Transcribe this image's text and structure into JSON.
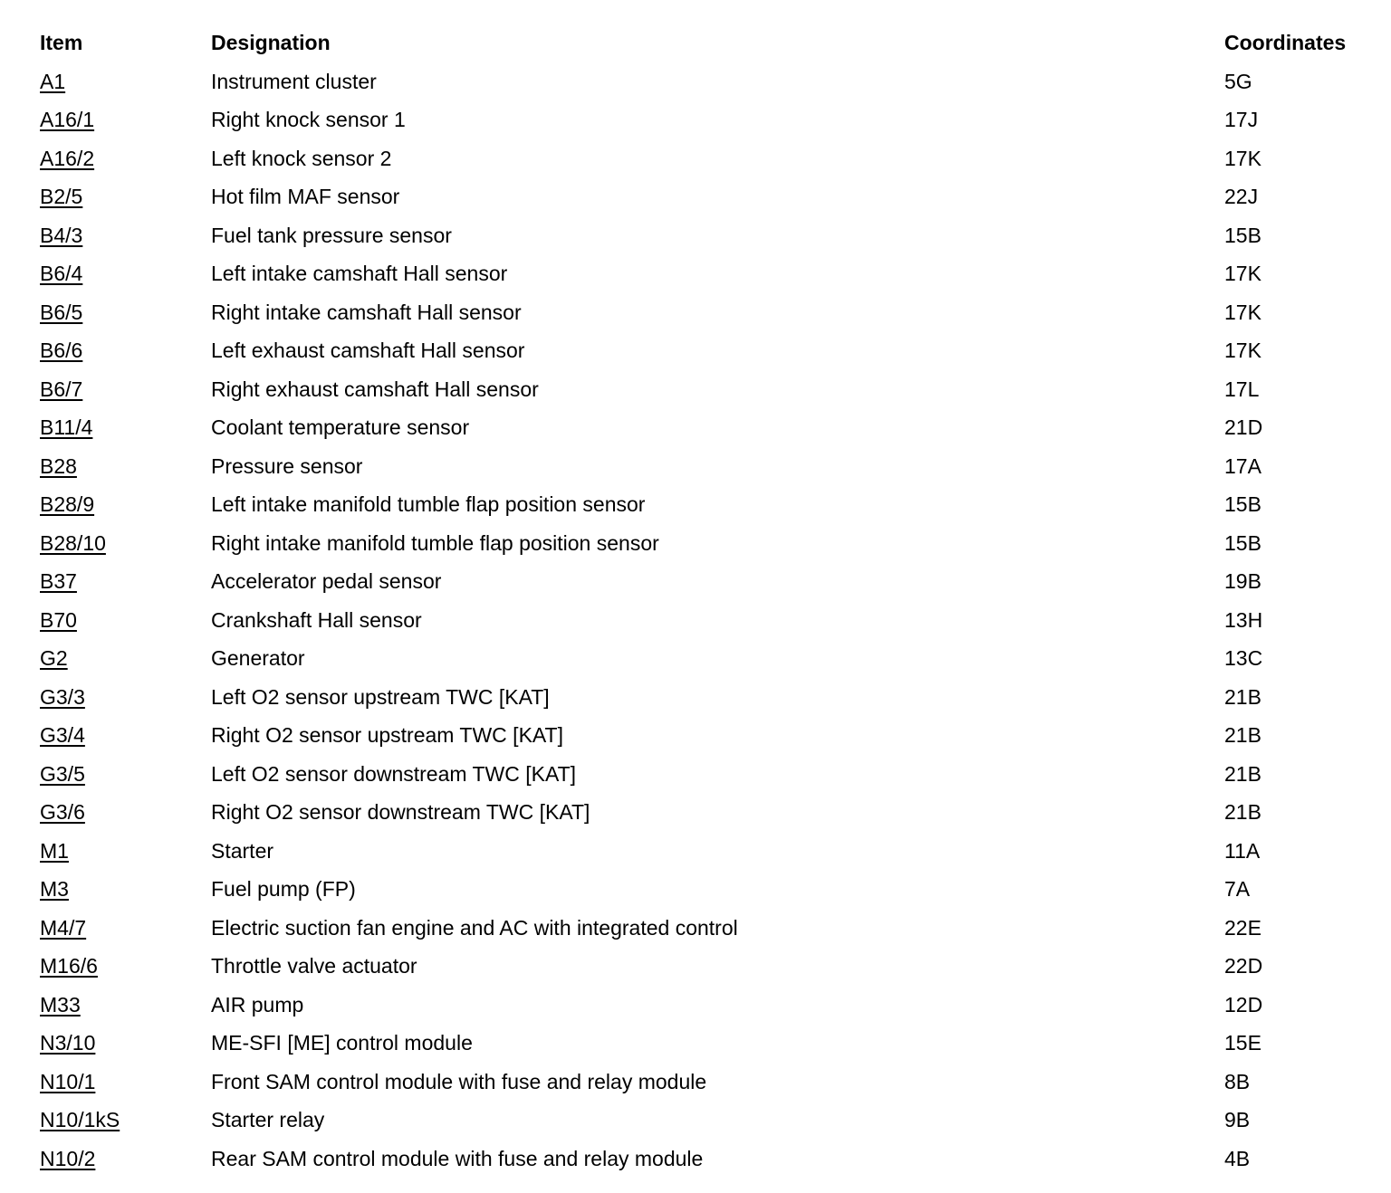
{
  "page": {
    "background_color": "#ffffff",
    "text_color": "#000000"
  },
  "table": {
    "headers": {
      "item": "Item",
      "designation": "Designation",
      "coordinates": "Coordinates"
    },
    "rows": [
      {
        "item": "A1",
        "designation": "Instrument cluster",
        "coordinates": "5G"
      },
      {
        "item": "A16/1",
        "designation": "Right knock sensor 1",
        "coordinates": "17J"
      },
      {
        "item": "A16/2",
        "designation": "Left knock sensor 2",
        "coordinates": "17K"
      },
      {
        "item": "B2/5",
        "designation": "Hot film MAF sensor",
        "coordinates": "22J"
      },
      {
        "item": "B4/3",
        "designation": "Fuel tank pressure sensor",
        "coordinates": "15B"
      },
      {
        "item": "B6/4",
        "designation": "Left intake camshaft Hall sensor",
        "coordinates": "17K"
      },
      {
        "item": "B6/5",
        "designation": "Right intake camshaft Hall sensor",
        "coordinates": "17K"
      },
      {
        "item": "B6/6",
        "designation": "Left exhaust camshaft Hall sensor",
        "coordinates": "17K"
      },
      {
        "item": "B6/7",
        "designation": "Right exhaust camshaft Hall sensor",
        "coordinates": "17L"
      },
      {
        "item": "B11/4",
        "designation": "Coolant temperature sensor",
        "coordinates": "21D"
      },
      {
        "item": "B28",
        "designation": "Pressure sensor",
        "coordinates": "17A"
      },
      {
        "item": "B28/9",
        "designation": "Left intake manifold tumble flap position sensor",
        "coordinates": "15B"
      },
      {
        "item": "B28/10",
        "designation": "Right intake manifold tumble flap position sensor",
        "coordinates": "15B"
      },
      {
        "item": "B37",
        "designation": "Accelerator pedal sensor",
        "coordinates": "19B"
      },
      {
        "item": "B70",
        "designation": "Crankshaft Hall sensor",
        "coordinates": "13H"
      },
      {
        "item": "G2",
        "designation": "Generator",
        "coordinates": "13C"
      },
      {
        "item": "G3/3",
        "designation": "Left O2 sensor upstream TWC [KAT]",
        "coordinates": "21B"
      },
      {
        "item": "G3/4",
        "designation": "Right O2 sensor upstream TWC [KAT]",
        "coordinates": "21B"
      },
      {
        "item": "G3/5",
        "designation": "Left O2 sensor downstream TWC [KAT]",
        "coordinates": "21B"
      },
      {
        "item": "G3/6",
        "designation": "Right O2 sensor downstream TWC [KAT]",
        "coordinates": "21B"
      },
      {
        "item": "M1",
        "designation": "Starter",
        "coordinates": "11A"
      },
      {
        "item": "M3",
        "designation": "Fuel pump (FP)",
        "coordinates": "7A"
      },
      {
        "item": "M4/7",
        "designation": "Electric suction fan engine and AC with integrated control",
        "coordinates": "22E"
      },
      {
        "item": "M16/6",
        "designation": "Throttle valve actuator",
        "coordinates": "22D"
      },
      {
        "item": "M33",
        "designation": "AIR pump",
        "coordinates": "12D"
      },
      {
        "item": "N3/10",
        "designation": "ME-SFI [ME] control module",
        "coordinates": "15E"
      },
      {
        "item": "N10/1",
        "designation": "Front SAM control module with fuse and relay module",
        "coordinates": "8B"
      },
      {
        "item": "N10/1kS",
        "designation": "Starter relay",
        "coordinates": "9B"
      },
      {
        "item": "N10/2",
        "designation": "Rear SAM control module with fuse and relay module",
        "coordinates": "4B"
      }
    ]
  }
}
